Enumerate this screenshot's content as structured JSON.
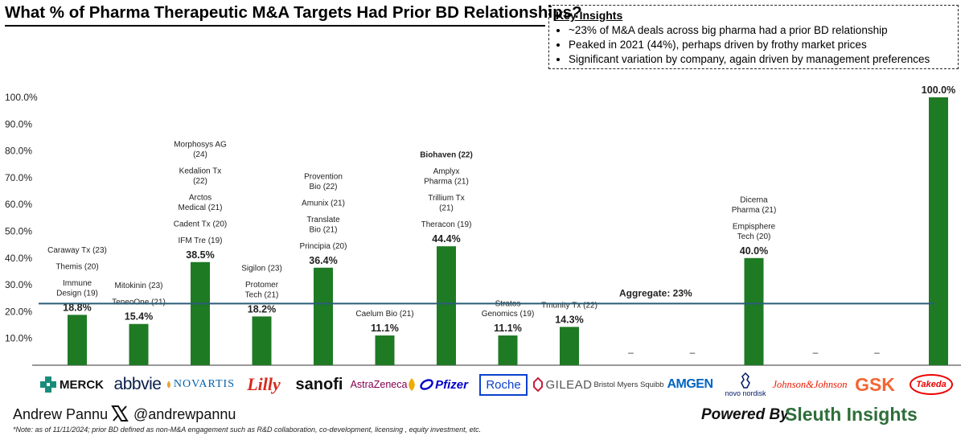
{
  "title": "What % of Pharma Therapeutic M&A Targets Had Prior BD Relationships?",
  "key_insights": {
    "heading": "Key Insights",
    "bullets": [
      "~23% of M&A deals across big pharma had a prior BD relationship",
      "Peaked in 2021 (44%), perhaps driven by frothy market prices",
      "Significant variation by company, again driven by management preferences"
    ]
  },
  "chart_data": {
    "type": "bar",
    "title": "What % of Pharma Therapeutic M&A Targets Had Prior BD Relationships?",
    "categories": [
      "Merck",
      "AbbVie",
      "Novartis",
      "Lilly",
      "Sanofi",
      "AstraZeneca",
      "Pfizer",
      "Roche",
      "Gilead",
      "Bristol Myers Squibb",
      "Amgen",
      "Novo Nordisk",
      "Johnson & Johnson",
      "GSK",
      "Takeda"
    ],
    "values": [
      18.8,
      15.4,
      38.5,
      18.2,
      36.4,
      11.1,
      44.4,
      11.1,
      14.3,
      null,
      null,
      40.0,
      null,
      null,
      100.0
    ],
    "value_labels": [
      "18.8%",
      "15.4%",
      "38.5%",
      "18.2%",
      "36.4%",
      "11.1%",
      "44.4%",
      "11.1%",
      "14.3%",
      "–",
      "–",
      "40.0%",
      "–",
      "–",
      "100.0%"
    ],
    "ylim": [
      0,
      100
    ],
    "yticks": [
      "10.0%",
      "20.0%",
      "30.0%",
      "40.0%",
      "50.0%",
      "60.0%",
      "70.0%",
      "80.0%",
      "90.0%",
      "100.0%"
    ],
    "bar_color": "#1f7a24",
    "aggregate": {
      "value": 23,
      "label": "Aggregate: 23%",
      "color": "#2a5d78"
    },
    "annotations": [
      [
        "Caraway Tx (23)",
        "Themis (20)",
        "Immune Design (19)"
      ],
      [
        "Mitokinin (23)",
        "TeneoOne (21)"
      ],
      [
        "Morphosys AG (24)",
        "Kedalion Tx (22)",
        "Arctos Medical (21)",
        "Cadent Tx (20)",
        "IFM Tre (19)"
      ],
      [
        "Sigilon (23)",
        "Protomer Tech (21)"
      ],
      [
        "Provention Bio (22)",
        "Amunix (21)",
        "Translate Bio (21)",
        "Principia (20)"
      ],
      [
        "Caelum Bio (21)"
      ],
      [
        "Biohaven (22)",
        "Amplyx Pharma (21)",
        "Trillium Tx (21)",
        "Theracon (19)"
      ],
      [
        "Stratos Genomics (19)"
      ],
      [
        "Tmunity Tx (22)"
      ],
      [],
      [],
      [
        "Dicerna Pharma (21)",
        "Empisphere Tech (20)"
      ],
      [],
      [],
      []
    ]
  },
  "logos": [
    "MERCK",
    "abbvie",
    "NOVARTIS",
    "Lilly",
    "sanofi",
    "AstraZeneca",
    "Pfizer",
    "Roche",
    "GILEAD",
    "Bristol Myers Squibb",
    "AMGEN",
    "novo nordisk",
    "Johnson&Johnson",
    "GSK",
    "Takeda"
  ],
  "footer": {
    "author": "Andrew Pannu",
    "handle": "@andrewpannu",
    "powered_by": "Powered By",
    "brand": "Sleuth Insights",
    "note": "*Note: as of 11/11/2024; prior BD defined as non-M&A engagement such as R&D collaboration, co-development, licensing , equity investment, etc."
  }
}
